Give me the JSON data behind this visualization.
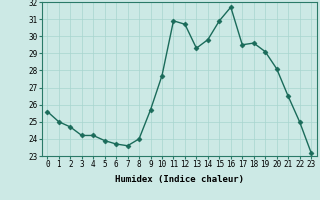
{
  "x": [
    0,
    1,
    2,
    3,
    4,
    5,
    6,
    7,
    8,
    9,
    10,
    11,
    12,
    13,
    14,
    15,
    16,
    17,
    18,
    19,
    20,
    21,
    22,
    23
  ],
  "y": [
    25.6,
    25.0,
    24.7,
    24.2,
    24.2,
    23.9,
    23.7,
    23.6,
    24.0,
    25.7,
    27.7,
    30.9,
    30.7,
    29.3,
    29.8,
    30.9,
    31.7,
    29.5,
    29.6,
    29.1,
    28.1,
    26.5,
    25.0,
    23.2
  ],
  "line_color": "#1a6b5a",
  "marker": "D",
  "marker_size": 2.5,
  "bg_color": "#cce9e5",
  "grid_color": "#a8d5cf",
  "xlabel": "Humidex (Indice chaleur)",
  "xlim": [
    -0.5,
    23.5
  ],
  "ylim": [
    23,
    32
  ],
  "xticks": [
    0,
    1,
    2,
    3,
    4,
    5,
    6,
    7,
    8,
    9,
    10,
    11,
    12,
    13,
    14,
    15,
    16,
    17,
    18,
    19,
    20,
    21,
    22,
    23
  ],
  "yticks": [
    23,
    24,
    25,
    26,
    27,
    28,
    29,
    30,
    31,
    32
  ],
  "tick_fontsize": 5.5,
  "label_fontsize": 6.5,
  "linewidth": 1.0
}
